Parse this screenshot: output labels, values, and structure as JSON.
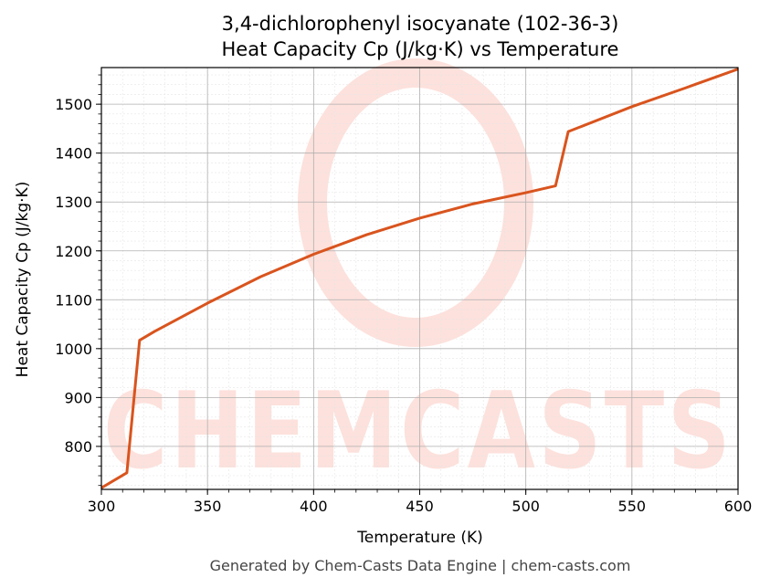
{
  "chart_data": {
    "type": "line",
    "title": "3,4-dichlorophenyl isocyanate (102-36-3)",
    "subtitle": "Heat Capacity Cp (J/kg·K) vs Temperature",
    "xlabel": "Temperature (K)",
    "ylabel": "Heat Capacity Cp (J/kg·K)",
    "xlim": [
      300,
      600
    ],
    "ylim": [
      712,
      1575
    ],
    "xticks": [
      300,
      350,
      400,
      450,
      500,
      550,
      600
    ],
    "yticks": [
      800,
      900,
      1000,
      1100,
      1200,
      1300,
      1400,
      1500
    ],
    "grid": true,
    "line_color": "#d9541e",
    "series": [
      {
        "x": [
          300,
          312,
          318,
          325,
          350,
          375,
          400,
          425,
          450,
          475,
          500,
          514,
          520,
          550,
          575,
          600
        ],
        "y": [
          715,
          746,
          1017,
          1035,
          1093,
          1147,
          1193,
          1233,
          1267,
          1296,
          1319,
          1333,
          1444,
          1495,
          1533,
          1572
        ]
      }
    ],
    "watermark": "CHEMCASTS",
    "footer": "Generated by Chem-Casts Data Engine | chem-casts.com"
  }
}
